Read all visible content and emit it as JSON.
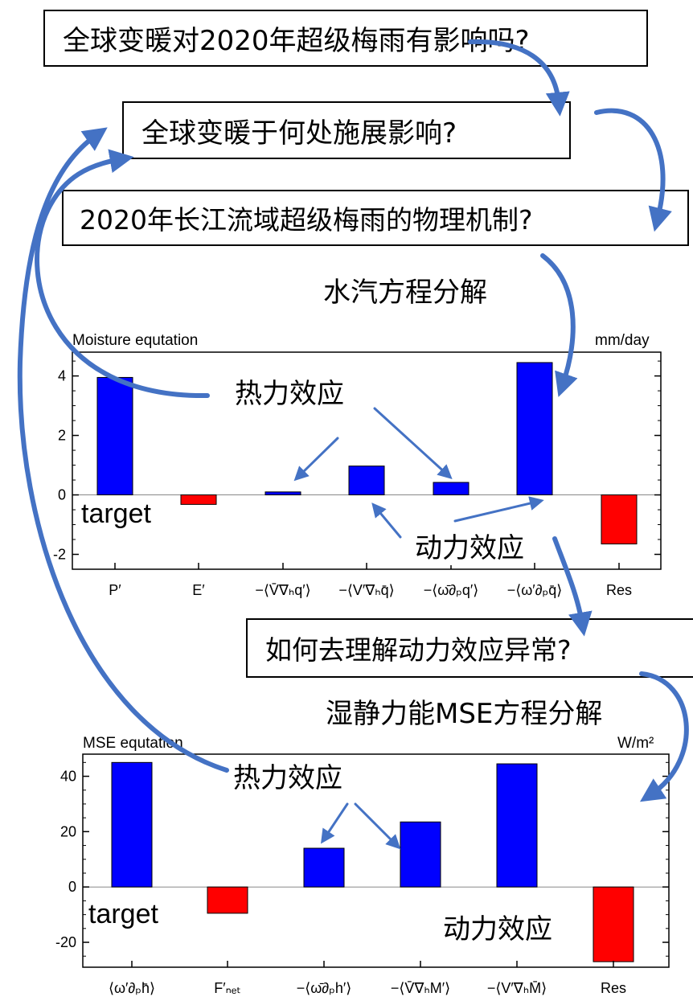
{
  "questions": {
    "q1": "全球变暖对2020年超级梅雨有影响吗?",
    "q2": "全球变暖于何处施展影响?",
    "q3": "2020年长江流域超级梅雨的物理机制?",
    "q4": "如何去理解动力效应异常?"
  },
  "annotations": {
    "moisture_decomp": "水汽方程分解",
    "mse_decomp": "湿静力能MSE方程分解",
    "thermo_1": "热力效应",
    "dynamic_1": "动力效应",
    "thermo_2": "热力效应",
    "dynamic_2": "动力效应"
  },
  "colors": {
    "positive": "#0000ff",
    "negative": "#ff0000",
    "arrow": "#4472c4"
  },
  "chart_data": [
    {
      "type": "bar",
      "title": "Moisture equtation",
      "unit": "mm/day",
      "target_label": "target",
      "categories": [
        "P′",
        "E′",
        "−⟨V̄∇ₕq′⟩",
        "−⟨V′∇ₕq̄⟩",
        "−⟨ω̄∂ₚq′⟩",
        "−⟨ω′∂ₚq̄⟩",
        "Res"
      ],
      "values": [
        3.95,
        -0.32,
        0.1,
        0.97,
        0.42,
        4.45,
        -1.65
      ],
      "ylim": [
        -2.5,
        4.8
      ],
      "yticks": [
        -2,
        0,
        2,
        4
      ]
    },
    {
      "type": "bar",
      "title": "MSE equtation",
      "unit": "W/m²",
      "target_label": "target",
      "categories": [
        "⟨ω′∂ₚh̄⟩",
        "F′ₙₑₜ",
        "−⟨ω̄∂ₚh′⟩",
        "−⟨V̄∇ₕM′⟩",
        "−⟨V′∇ₕM̄⟩",
        "Res"
      ],
      "values": [
        45,
        -9.5,
        14,
        23.5,
        44.5,
        -27
      ],
      "ylim": [
        -29,
        48
      ],
      "yticks": [
        -20,
        0,
        20,
        40
      ]
    }
  ]
}
